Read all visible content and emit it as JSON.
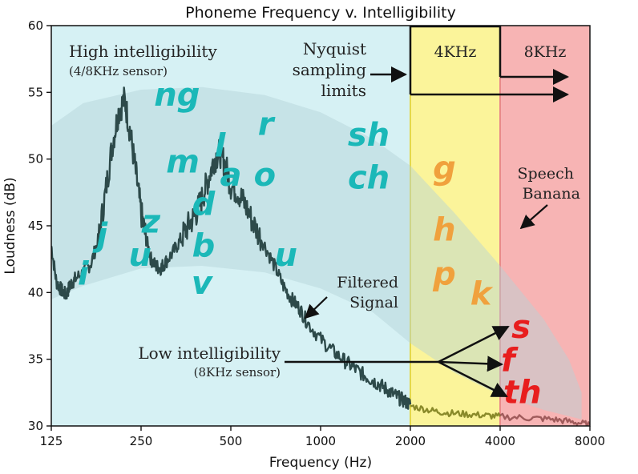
{
  "chart_data": {
    "type": "line",
    "title": "Phoneme Frequency v. Intelligibility",
    "xlabel": "Frequency (Hz)",
    "ylabel": "Loudness (dB)",
    "x_scale": "log2",
    "xlim": [
      125,
      8000
    ],
    "ylim": [
      30,
      60
    ],
    "x_ticks": [
      125,
      250,
      500,
      1000,
      2000,
      4000,
      8000
    ],
    "x_tick_labels": [
      "125",
      "250",
      "500",
      "1000",
      "2000",
      "4000",
      "8000"
    ],
    "y_ticks": [
      30,
      35,
      40,
      45,
      50,
      55,
      60
    ],
    "y_tick_labels": [
      "30",
      "35",
      "40",
      "45",
      "50",
      "55",
      "60"
    ],
    "grid": false,
    "regions": [
      {
        "name": "high-intelligibility",
        "from": 125,
        "to": 2000,
        "color": "#d6f1f4"
      },
      {
        "name": "4khz",
        "from": 2000,
        "to": 4000,
        "color": "#fbf49a",
        "edge": "#e4d84a"
      },
      {
        "name": "8khz",
        "from": 4000,
        "to": 8000,
        "color": "#f7b4b4",
        "edge": "#e88a8a"
      }
    ],
    "banana": {
      "color": "#b4d3d6",
      "opacity": 0.45,
      "upper": {
        "x": [
          125,
          160,
          250,
          400,
          650,
          1000,
          1500,
          2000,
          2800,
          4000,
          5600,
          6800,
          7500
        ],
        "y": [
          52.5,
          54.2,
          55.2,
          55.4,
          54.8,
          53.5,
          51.5,
          49.5,
          46.0,
          42.0,
          38.0,
          35.0,
          32.5
        ]
      },
      "lower": {
        "x": [
          125,
          160,
          250,
          400,
          650,
          1000,
          1500,
          2000,
          2800,
          4000,
          5600,
          7500
        ],
        "y": [
          39.5,
          40.5,
          41.8,
          42.0,
          41.5,
          40.3,
          38.5,
          36.2,
          34.0,
          32.3,
          31.2,
          30.5
        ]
      }
    },
    "series": [
      {
        "color": "#2d4a4a",
        "x": [
          125,
          130,
          135,
          140,
          145,
          150,
          160,
          170,
          180,
          190,
          200,
          210,
          220,
          230,
          240,
          250,
          260,
          270,
          280,
          290,
          300,
          320,
          340,
          360,
          380,
          400,
          420,
          440,
          460,
          480,
          500,
          530,
          560,
          600,
          650,
          700,
          750,
          800,
          850,
          900,
          1000,
          1100,
          1200,
          1300,
          1400,
          1500,
          1600,
          1700,
          1800,
          1900,
          2000
        ],
        "y": [
          43.5,
          40.8,
          40.2,
          39.8,
          40.6,
          41.0,
          41.5,
          42.2,
          44.0,
          47.5,
          51.0,
          53.5,
          54.5,
          52.0,
          49.0,
          46.0,
          44.0,
          42.5,
          42.0,
          41.8,
          42.2,
          43.0,
          44.0,
          45.0,
          45.8,
          47.0,
          48.5,
          50.0,
          50.5,
          49.5,
          48.0,
          47.5,
          46.5,
          45.0,
          43.5,
          42.0,
          40.5,
          39.5,
          38.8,
          37.8,
          36.5,
          35.6,
          34.9,
          34.3,
          33.8,
          33.4,
          33.0,
          32.6,
          32.2,
          31.9,
          31.6
        ]
      },
      {
        "color": "#8a8a2a",
        "x": [
          2000,
          2300,
          2600,
          3000,
          3500,
          4000
        ],
        "y": [
          31.5,
          31.2,
          31.0,
          30.9,
          30.8,
          30.7
        ]
      },
      {
        "color": "#a05b5b",
        "x": [
          4000,
          5000,
          6000,
          7000,
          8000
        ],
        "y": [
          30.7,
          30.6,
          30.5,
          30.3,
          30.1
        ]
      }
    ],
    "phonemes": [
      {
        "label": "ng",
        "x": 330,
        "y": 54.0,
        "color": "#1bb8b8",
        "group": "high"
      },
      {
        "label": "r",
        "x": 655,
        "y": 51.8,
        "color": "#1bb8b8",
        "group": "high"
      },
      {
        "label": "l",
        "x": 460,
        "y": 50.2,
        "color": "#1bb8b8",
        "group": "high"
      },
      {
        "label": "m",
        "x": 345,
        "y": 49.0,
        "color": "#1bb8b8",
        "group": "high"
      },
      {
        "label": "a",
        "x": 500,
        "y": 48.0,
        "color": "#1bb8b8",
        "group": "high"
      },
      {
        "label": "o",
        "x": 650,
        "y": 48.0,
        "color": "#1bb8b8",
        "group": "high"
      },
      {
        "label": "sh",
        "x": 1450,
        "y": 51.0,
        "color": "#1bb8b8",
        "group": "high"
      },
      {
        "label": "ch",
        "x": 1450,
        "y": 47.8,
        "color": "#1bb8b8",
        "group": "high"
      },
      {
        "label": "d",
        "x": 405,
        "y": 45.8,
        "color": "#1bb8b8",
        "group": "high"
      },
      {
        "label": "z",
        "x": 270,
        "y": 44.5,
        "color": "#1bb8b8",
        "group": "high"
      },
      {
        "label": "j",
        "x": 185,
        "y": 43.5,
        "color": "#1bb8b8",
        "group": "high"
      },
      {
        "label": "b",
        "x": 405,
        "y": 42.7,
        "color": "#1bb8b8",
        "group": "high"
      },
      {
        "label": "u",
        "x": 248,
        "y": 42.0,
        "color": "#1bb8b8",
        "group": "high"
      },
      {
        "label": "u",
        "x": 765,
        "y": 42.0,
        "color": "#1bb8b8",
        "group": "high"
      },
      {
        "label": "i",
        "x": 160,
        "y": 40.6,
        "color": "#1bb8b8",
        "group": "high"
      },
      {
        "label": "v",
        "x": 400,
        "y": 39.9,
        "color": "#1bb8b8",
        "group": "high"
      },
      {
        "label": "g",
        "x": 2600,
        "y": 48.5,
        "color": "#f0a13d",
        "group": "4khz"
      },
      {
        "label": "h",
        "x": 2600,
        "y": 43.9,
        "color": "#f0a13d",
        "group": "4khz"
      },
      {
        "label": "p",
        "x": 2600,
        "y": 40.6,
        "color": "#f0a13d",
        "group": "4khz"
      },
      {
        "label": "k",
        "x": 3450,
        "y": 39.1,
        "color": "#f0a13d",
        "group": "4khz"
      },
      {
        "label": "s",
        "x": 4700,
        "y": 36.6,
        "color": "#e81e1e",
        "group": "8khz"
      },
      {
        "label": "f",
        "x": 4250,
        "y": 34.1,
        "color": "#e81e1e",
        "group": "8khz"
      },
      {
        "label": "th",
        "x": 4750,
        "y": 31.7,
        "color": "#e81e1e",
        "group": "8khz"
      }
    ],
    "annotations": {
      "high_intel": {
        "line1": "High intelligibility",
        "line2": "(4/8KHz sensor)"
      },
      "nyquist": {
        "line1": "Nyquist",
        "line2": "sampling",
        "line3": "limits"
      },
      "band_4k": "4KHz",
      "band_8k": "8KHz",
      "speech_banana": {
        "line1": "Speech",
        "line2": "Banana"
      },
      "filtered": {
        "line1": "Filtered",
        "line2": "Signal"
      },
      "low_intel": {
        "line1": "Low intelligibility",
        "line2": "(8KHz sensor)"
      }
    }
  }
}
